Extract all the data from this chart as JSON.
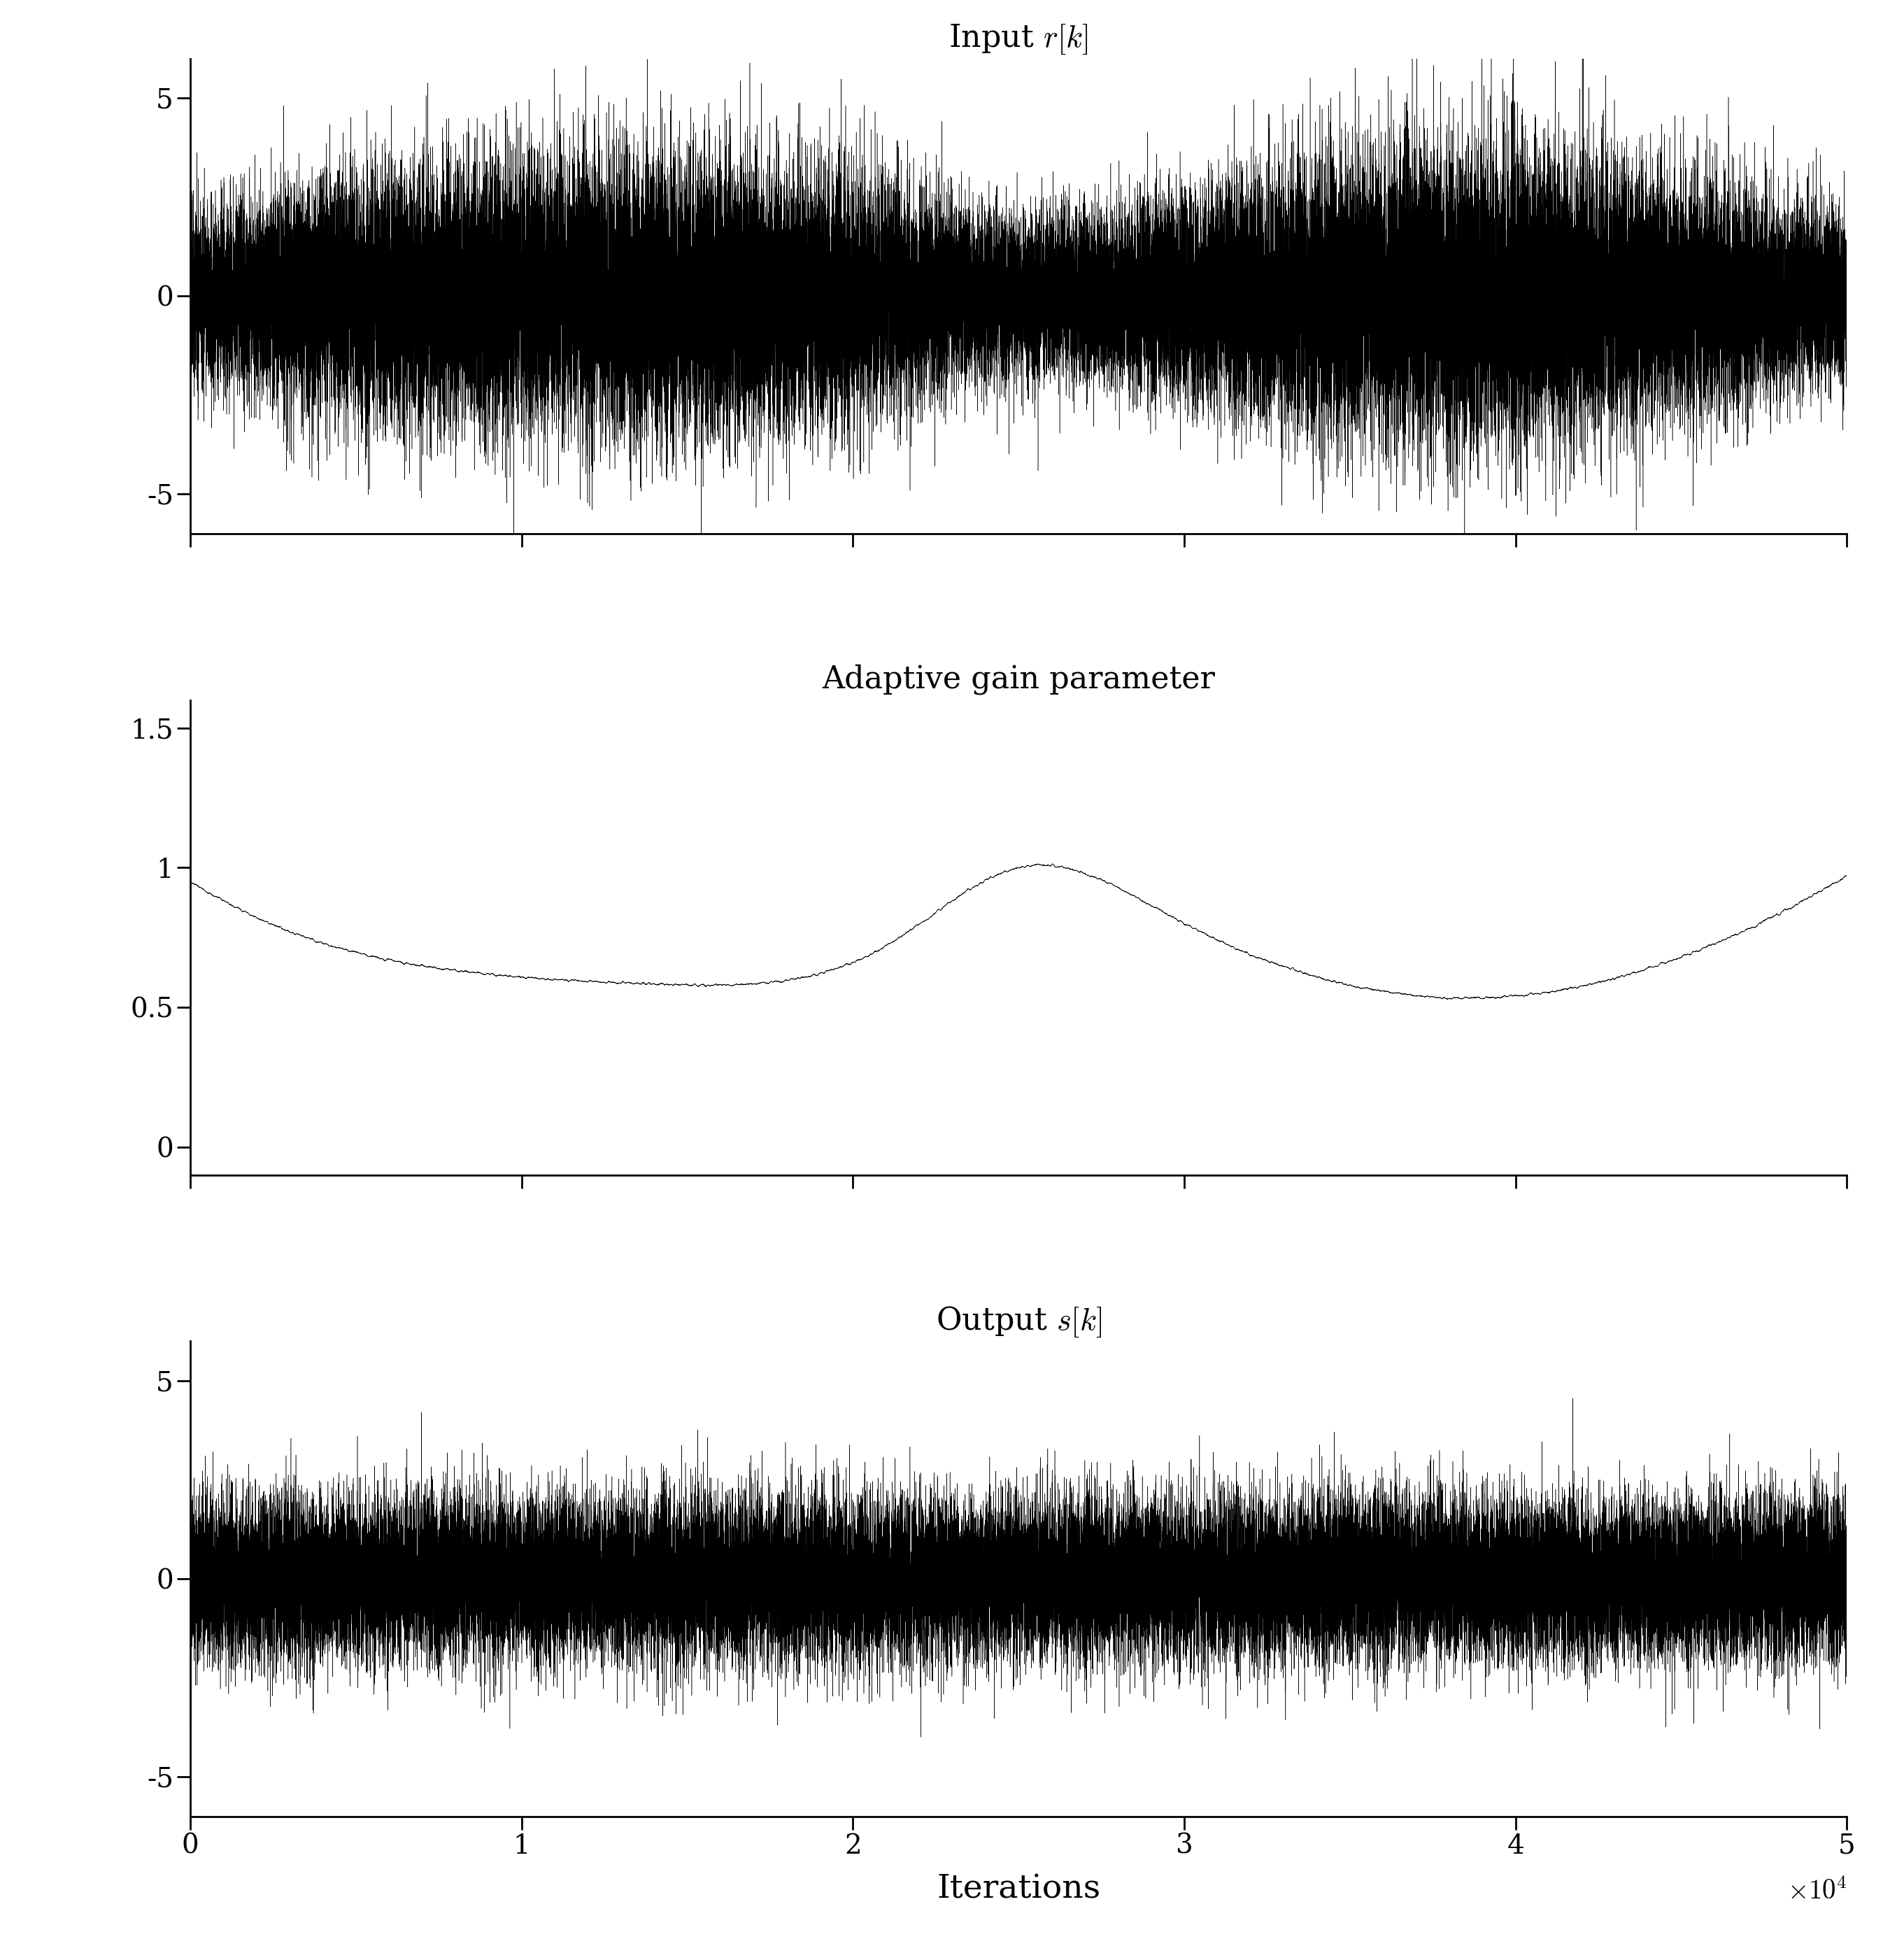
{
  "n_samples": 50000,
  "title1": "Input $r[k]$",
  "title2": "Adaptive gain parameter",
  "title3": "Output $s[k]$",
  "xlabel": "Iterations",
  "ylim1": [
    -6,
    6
  ],
  "ylim2": [
    -0.1,
    1.6
  ],
  "ylim3": [
    -6,
    6
  ],
  "yticks1": [
    -5,
    0,
    5
  ],
  "yticks2": [
    0,
    0.5,
    1.0,
    1.5
  ],
  "yticks3": [
    -5,
    0,
    5
  ],
  "xticks": [
    0,
    10000,
    20000,
    30000,
    40000,
    50000
  ],
  "xticklabels": [
    "0",
    "1",
    "2",
    "3",
    "4",
    "5"
  ],
  "line_color": "#000000",
  "background_color": "#ffffff",
  "seed": 42,
  "title_fontsize": 32,
  "tick_fontsize": 28,
  "label_fontsize": 34,
  "gain_keypoints_x": [
    0,
    0.02,
    0.12,
    0.22,
    0.3,
    0.42,
    0.5,
    0.6,
    0.7,
    0.8,
    0.9,
    1.0
  ],
  "gain_keypoints_y": [
    0.95,
    0.88,
    0.67,
    0.6,
    0.58,
    0.72,
    1.0,
    0.8,
    0.58,
    0.54,
    0.68,
    0.97
  ],
  "output_std": 1.0,
  "gain_noise_scale": 0.018,
  "gain_noise_smooth": 80
}
